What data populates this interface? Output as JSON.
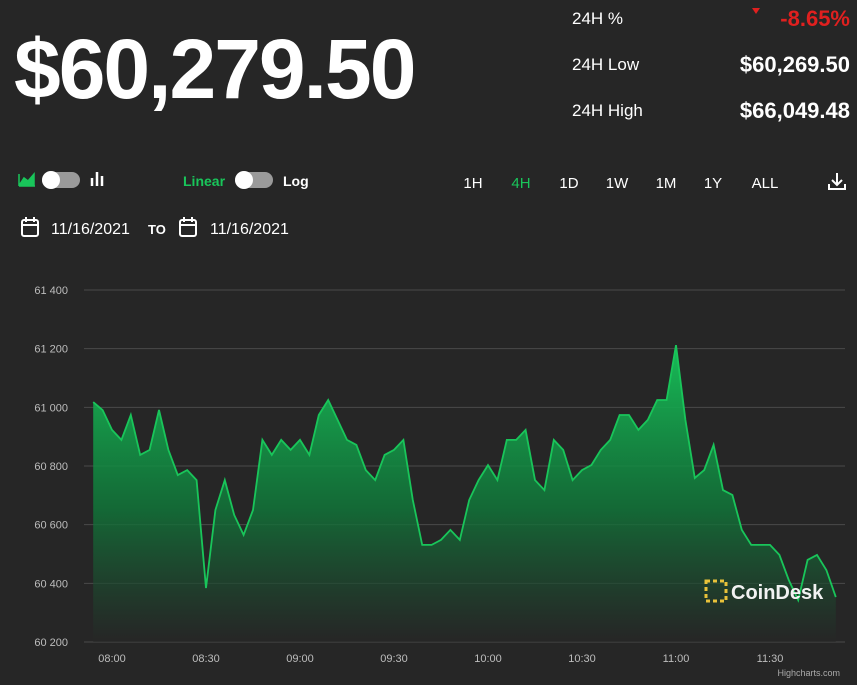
{
  "header": {
    "price": "$60,279.50",
    "stats": [
      {
        "label": "24H %",
        "value": "-8.65%"
      },
      {
        "label": "24H Low",
        "value": "$60,269.50"
      },
      {
        "label": "24H High",
        "value": "$66,049.48"
      }
    ]
  },
  "controls": {
    "scale": [
      "Linear",
      "Log"
    ],
    "ranges": [
      "1H",
      "4H",
      "1D",
      "1W",
      "1M",
      "1Y",
      "ALL"
    ],
    "active_range": "4H",
    "date_from": "11/16/2021",
    "to_label": "TO",
    "date_to": "11/16/2021"
  },
  "chart_data": {
    "type": "area",
    "color": "#19c55a",
    "grid": true,
    "watermark": "CoinDesk",
    "credits": "Highcharts.com",
    "categories": [
      null,
      null,
      "08:00",
      null,
      null,
      null,
      null,
      null,
      null,
      null,
      null,
      null,
      "08:30",
      null,
      null,
      null,
      null,
      null,
      null,
      null,
      null,
      null,
      "09:00",
      null,
      null,
      null,
      null,
      null,
      null,
      null,
      null,
      null,
      "09:30",
      null,
      null,
      null,
      null,
      null,
      null,
      null,
      null,
      null,
      "10:00",
      null,
      null,
      null,
      null,
      null,
      null,
      null,
      null,
      null,
      "10:30",
      null,
      null,
      null,
      null,
      null,
      null,
      null,
      null,
      null,
      "11:00",
      null,
      null,
      null,
      null,
      null,
      null,
      null,
      null,
      null,
      "11:30",
      null,
      null,
      null,
      null,
      null,
      null,
      null
    ],
    "values": [
      61018,
      60991,
      60923,
      60889,
      60974,
      60838,
      60855,
      60991,
      60855,
      60769,
      60786,
      60752,
      60384,
      60650,
      60752,
      60633,
      60565,
      60650,
      60889,
      60838,
      60889,
      60855,
      60889,
      60838,
      60974,
      61025,
      60957,
      60889,
      60872,
      60786,
      60752,
      60838,
      60855,
      60889,
      60684,
      60531,
      60531,
      60548,
      60582,
      60548,
      60684,
      60752,
      60803,
      60752,
      60889,
      60889,
      60923,
      60752,
      60718,
      60889,
      60855,
      60752,
      60786,
      60803,
      60855,
      60889,
      60974,
      60974,
      60923,
      60957,
      61025,
      61025,
      61212,
      60957,
      60759,
      60786,
      60872,
      60718,
      60701,
      60582,
      60531,
      60531,
      60531,
      60497,
      60411,
      60343,
      60480,
      60497,
      60445,
      60353
    ],
    "ylim": [
      60200,
      61400
    ],
    "yticks": [
      {
        "value": 60200,
        "label": "60 200"
      },
      {
        "value": 60400,
        "label": "60 400"
      },
      {
        "value": 60600,
        "label": "60 600"
      },
      {
        "value": 60800,
        "label": "60 800"
      },
      {
        "value": 61000,
        "label": "61 000"
      },
      {
        "value": 61200,
        "label": "61 200"
      },
      {
        "value": 61400,
        "label": "61 400"
      }
    ]
  }
}
